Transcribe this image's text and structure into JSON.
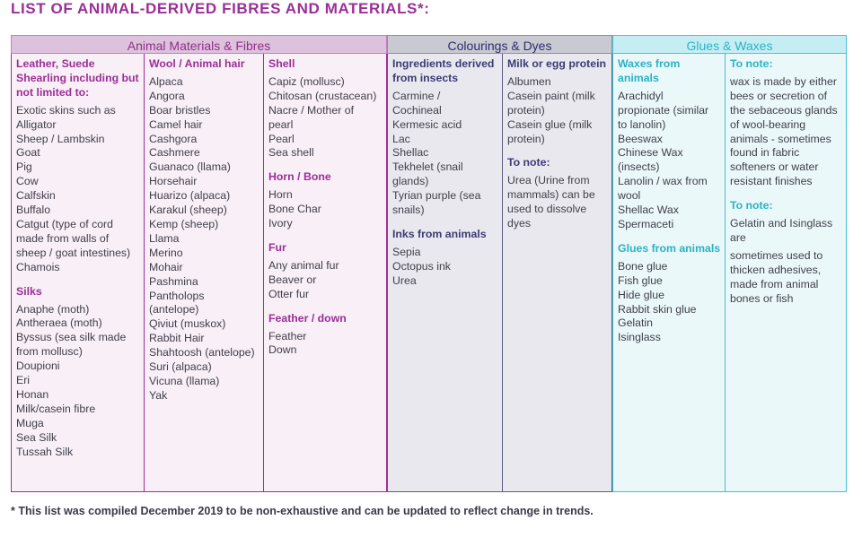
{
  "title": "LIST OF ANIMAL-DERIVED FIBRES AND MATERIALS*:",
  "headers": {
    "animal": "Animal Materials & Fibres",
    "colour": "Colourings & Dyes",
    "glue": "Glues & Waxes"
  },
  "col1": {
    "s1_title_1": "Leather, Suede",
    "s1_title_2": "Shearling including but",
    "s1_title_3": "not limited to:",
    "s1_items": [
      "Exotic skins such as",
      "Alligator",
      "Sheep / Lambskin",
      "Goat",
      "Pig",
      "Cow",
      "Calfskin",
      "Buffalo",
      "Catgut (type of cord",
      "made from walls of",
      "sheep / goat intestines)",
      "Chamois"
    ],
    "s2_title": "Silks",
    "s2_items": [
      "Anaphe (moth)",
      "Antheraea (moth)",
      "Byssus (sea silk made",
      "from mollusc)",
      "Doupioni",
      "Eri",
      "Honan",
      "Milk/casein fibre",
      "Muga",
      "Sea Silk",
      "Tussah Silk"
    ]
  },
  "col2": {
    "title": "Wool / Animal hair",
    "items": [
      "Alpaca",
      "Angora",
      "Boar bristles",
      "Camel hair",
      "Cashgora",
      "Cashmere",
      "Guanaco (llama)",
      "Horsehair",
      "Huarizo (alpaca)",
      "Karakul (sheep)",
      "Kemp (sheep)",
      "Llama",
      "Merino",
      "Mohair",
      "Pashmina",
      "Pantholops",
      "(antelope)",
      "Qiviut (muskox)",
      "Rabbit Hair",
      "Shahtoosh (antelope)",
      "Suri (alpaca)",
      "Vicuna (llama)",
      "Yak"
    ]
  },
  "col3": {
    "s1_title": "Shell",
    "s1_items": [
      "Capiz (mollusc)",
      "Chitosan (crustacean)",
      "Nacre / Mother of",
      "pearl",
      "Pearl",
      "Sea shell"
    ],
    "s2_title": "Horn / Bone",
    "s2_items": [
      "Horn",
      "Bone Char",
      "Ivory"
    ],
    "s3_title": "Fur",
    "s3_items": [
      "Any animal fur",
      "Beaver or",
      "Otter fur"
    ],
    "s4_title": "Feather / down",
    "s4_items": [
      "Feather",
      "Down"
    ]
  },
  "col4": {
    "s1_title_1": "Ingredients derived",
    "s1_title_2": "from insects",
    "s1_items": [
      "Carmine /",
      "Cochineal",
      "Kermesic acid",
      "Lac",
      "Shellac",
      "Tekhelet (snail",
      "glands)",
      "Tyrian purple (sea",
      "snails)"
    ],
    "s2_title": "Inks from animals",
    "s2_items": [
      "Sepia",
      "Octopus ink",
      "Urea"
    ]
  },
  "col5": {
    "s1_title": "Milk or egg protein",
    "s1_items": [
      "Albumen",
      "Casein paint (milk",
      "protein)",
      "Casein glue (milk",
      "protein)"
    ],
    "s2_title": "To note:",
    "s2_items": [
      "Urea (Urine from",
      "mammals) can be",
      "used to dissolve",
      "dyes"
    ]
  },
  "col6": {
    "s1_title_1": "Waxes from",
    "s1_title_2": "animals",
    "s1_items": [
      "Arachidyl",
      "propionate (similar",
      "to lanolin)",
      "Beeswax",
      "Chinese Wax",
      "(insects)",
      "Lanolin / wax from",
      "wool",
      "Shellac Wax",
      "Spermaceti"
    ],
    "s2_title": "Glues from animals",
    "s2_items": [
      "Bone glue",
      "Fish glue",
      "Hide glue",
      "Rabbit skin glue",
      "Gelatin",
      "Isinglass"
    ]
  },
  "col7": {
    "s1_title": "To note:",
    "s1_items": [
      "wax is made by either",
      "bees or secretion of",
      "the sebaceous glands",
      "of wool-bearing",
      "animals - sometimes",
      "found in fabric",
      "softeners or water",
      "resistant finishes"
    ],
    "s2_title": "To note:",
    "s2_items": [
      "Gelatin and Isinglass",
      "are"
    ],
    "s3_items": [
      "sometimes used to",
      "thicken adhesives,",
      "made from animal",
      "bones or fish"
    ]
  },
  "footnote": "* This list was compiled December 2019 to be non-exhaustive and can be updated to reflect change in trends.",
  "colors": {
    "animal_accent": "#9b2f96",
    "colour_accent": "#3b3b74",
    "glue_accent": "#2bb2c4"
  }
}
